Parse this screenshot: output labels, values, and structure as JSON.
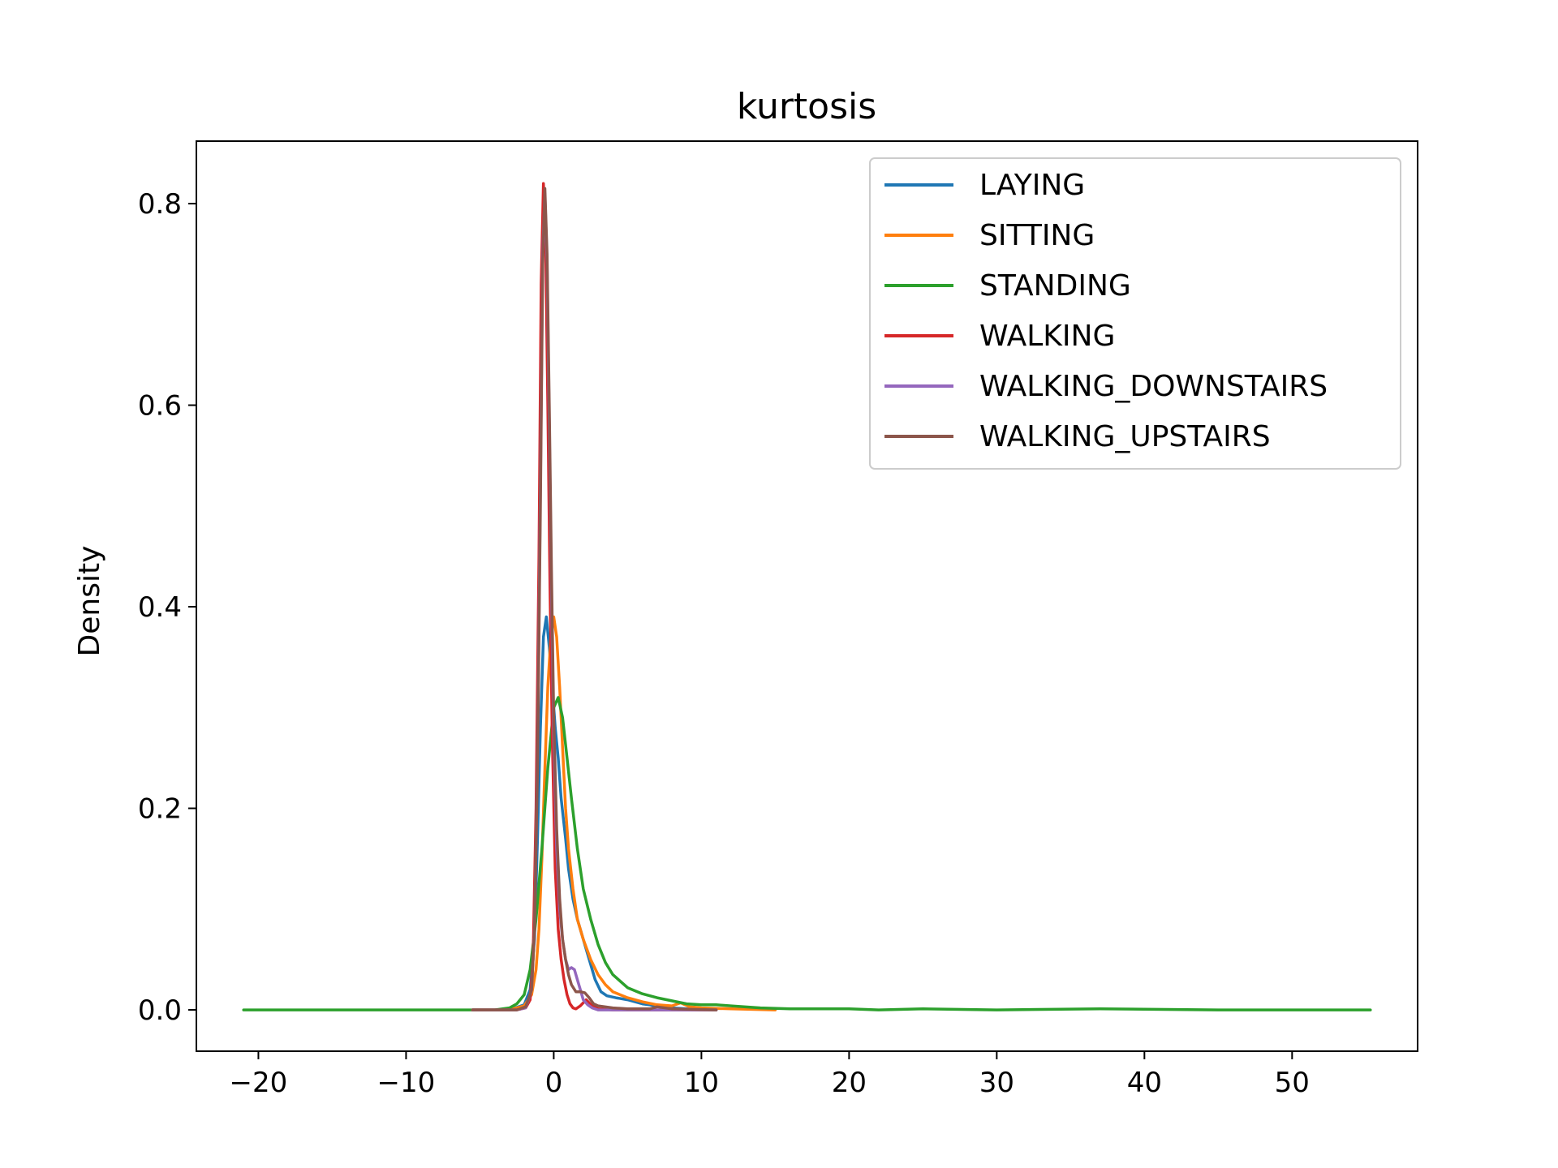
{
  "chart_data": {
    "type": "line",
    "title": "kurtosis",
    "xlabel": "",
    "ylabel": "Density",
    "xlim": [
      -24.2,
      58.5
    ],
    "ylim": [
      -0.041,
      0.862
    ],
    "xticks": [
      -20,
      -10,
      0,
      10,
      20,
      30,
      40,
      50
    ],
    "yticks": [
      0.0,
      0.2,
      0.4,
      0.6,
      0.8
    ],
    "xtick_labels": [
      "−20",
      "−10",
      "0",
      "10",
      "20",
      "30",
      "40",
      "50"
    ],
    "ytick_labels": [
      "0.0",
      "0.2",
      "0.4",
      "0.6",
      "0.8"
    ],
    "legend_position": "top-right",
    "grid": false,
    "series": [
      {
        "name": "LAYING",
        "color": "#1f77b4",
        "x": [
          -5.5,
          -3,
          -2,
          -1.6,
          -1.3,
          -1.1,
          -0.9,
          -0.7,
          -0.5,
          -0.3,
          -0.1,
          0.1,
          0.3,
          0.5,
          0.8,
          1.0,
          1.3,
          1.6,
          2.0,
          2.4,
          2.8,
          3.2,
          3.6,
          4.2,
          5.0,
          6.0,
          7.0,
          8.0,
          9.0,
          11.0
        ],
        "y": [
          0.0,
          0.0,
          0.005,
          0.02,
          0.07,
          0.17,
          0.28,
          0.37,
          0.39,
          0.36,
          0.32,
          0.28,
          0.25,
          0.21,
          0.17,
          0.14,
          0.11,
          0.09,
          0.07,
          0.05,
          0.03,
          0.018,
          0.014,
          0.012,
          0.01,
          0.006,
          0.004,
          0.002,
          0.001,
          0.0
        ]
      },
      {
        "name": "SITTING",
        "color": "#ff7f0e",
        "x": [
          -5.5,
          -3,
          -2,
          -1.5,
          -1.2,
          -1.0,
          -0.8,
          -0.6,
          -0.4,
          -0.2,
          0.0,
          0.2,
          0.4,
          0.6,
          0.8,
          1.0,
          1.3,
          1.6,
          2.0,
          2.5,
          3.0,
          3.5,
          4.0,
          5.0,
          6.0,
          7.0,
          8.0,
          8.6,
          9.2,
          10.0,
          12.0,
          15.0
        ],
        "y": [
          0.0,
          0.0,
          0.004,
          0.015,
          0.04,
          0.08,
          0.15,
          0.24,
          0.32,
          0.37,
          0.39,
          0.37,
          0.32,
          0.26,
          0.2,
          0.16,
          0.12,
          0.09,
          0.07,
          0.05,
          0.035,
          0.025,
          0.018,
          0.012,
          0.008,
          0.005,
          0.004,
          0.007,
          0.003,
          0.002,
          0.001,
          0.0
        ]
      },
      {
        "name": "STANDING",
        "color": "#2ca02c",
        "x": [
          -21,
          -10,
          -4,
          -3,
          -2.5,
          -2.0,
          -1.6,
          -1.2,
          -0.8,
          -0.4,
          0.0,
          0.3,
          0.6,
          0.9,
          1.2,
          1.6,
          2.0,
          2.5,
          3.0,
          3.5,
          4.0,
          5.0,
          6.0,
          7.0,
          8.0,
          9.0,
          10.0,
          11.0,
          12.0,
          14.0,
          16.0,
          18.0,
          20.0,
          22.0,
          25.0,
          30.0,
          37.0,
          45.0,
          55.3
        ],
        "y": [
          0.0,
          0.0,
          0.0,
          0.002,
          0.006,
          0.015,
          0.04,
          0.09,
          0.16,
          0.24,
          0.3,
          0.31,
          0.29,
          0.25,
          0.21,
          0.16,
          0.12,
          0.09,
          0.065,
          0.047,
          0.035,
          0.022,
          0.016,
          0.012,
          0.009,
          0.006,
          0.005,
          0.005,
          0.004,
          0.002,
          0.001,
          0.001,
          0.001,
          0.0,
          0.001,
          0.0,
          0.001,
          0.0,
          0.0
        ]
      },
      {
        "name": "WALKING",
        "color": "#d62728",
        "x": [
          -5.5,
          -2.5,
          -1.9,
          -1.6,
          -1.4,
          -1.2,
          -1.0,
          -0.85,
          -0.7,
          -0.55,
          -0.4,
          -0.25,
          -0.1,
          0.1,
          0.3,
          0.5,
          0.7,
          0.9,
          1.1,
          1.3,
          1.5,
          1.8,
          2.2,
          2.6,
          3.0,
          4.0,
          6.0,
          11.0
        ],
        "y": [
          0.0,
          0.0,
          0.002,
          0.01,
          0.05,
          0.2,
          0.45,
          0.72,
          0.82,
          0.76,
          0.6,
          0.42,
          0.27,
          0.14,
          0.08,
          0.05,
          0.03,
          0.015,
          0.006,
          0.002,
          0.001,
          0.004,
          0.01,
          0.004,
          0.001,
          0.0,
          0.0,
          0.0
        ]
      },
      {
        "name": "WALKING_DOWNSTAIRS",
        "color": "#9467bd",
        "x": [
          -5.5,
          -2.5,
          -1.9,
          -1.5,
          -1.3,
          -1.1,
          -0.9,
          -0.75,
          -0.6,
          -0.45,
          -0.3,
          -0.15,
          0.0,
          0.2,
          0.4,
          0.6,
          0.8,
          1.0,
          1.2,
          1.4,
          1.6,
          1.8,
          2.0,
          2.3,
          2.6,
          3.0,
          4.0,
          6.0,
          11.0
        ],
        "y": [
          0.0,
          0.0,
          0.002,
          0.02,
          0.08,
          0.25,
          0.52,
          0.75,
          0.81,
          0.74,
          0.58,
          0.41,
          0.27,
          0.16,
          0.1,
          0.07,
          0.05,
          0.04,
          0.042,
          0.04,
          0.03,
          0.02,
          0.01,
          0.005,
          0.002,
          0.0,
          0.0,
          0.0,
          0.0
        ]
      },
      {
        "name": "WALKING_UPSTAIRS",
        "color": "#8c564b",
        "x": [
          -5.5,
          -2.5,
          -1.9,
          -1.5,
          -1.3,
          -1.1,
          -0.9,
          -0.75,
          -0.6,
          -0.45,
          -0.3,
          -0.15,
          0.0,
          0.2,
          0.4,
          0.6,
          0.8,
          1.0,
          1.2,
          1.5,
          1.8,
          2.1,
          2.4,
          2.7,
          3.0,
          3.5,
          4.0,
          5.0,
          6.5,
          7.0,
          8.0,
          11.0
        ],
        "y": [
          0.0,
          0.0,
          0.003,
          0.02,
          0.08,
          0.24,
          0.5,
          0.74,
          0.815,
          0.75,
          0.6,
          0.43,
          0.29,
          0.18,
          0.11,
          0.07,
          0.05,
          0.035,
          0.025,
          0.018,
          0.018,
          0.017,
          0.012,
          0.006,
          0.004,
          0.003,
          0.002,
          0.001,
          0.001,
          0.003,
          0.001,
          0.0
        ]
      }
    ]
  }
}
